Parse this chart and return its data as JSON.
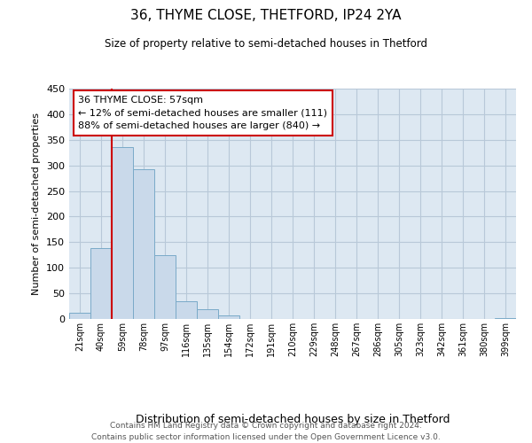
{
  "title": "36, THYME CLOSE, THETFORD, IP24 2YA",
  "subtitle": "Size of property relative to semi-detached houses in Thetford",
  "xlabel": "Distribution of semi-detached houses by size in Thetford",
  "ylabel": "Number of semi-detached properties",
  "bar_color": "#c9d9ea",
  "bar_edge_color": "#7aaac8",
  "background_color": "#ffffff",
  "plot_bg_color": "#dde8f2",
  "grid_color": "#b8c8d8",
  "bin_labels": [
    "21sqm",
    "40sqm",
    "59sqm",
    "78sqm",
    "97sqm",
    "116sqm",
    "135sqm",
    "154sqm",
    "172sqm",
    "191sqm",
    "210sqm",
    "229sqm",
    "248sqm",
    "267sqm",
    "286sqm",
    "305sqm",
    "323sqm",
    "342sqm",
    "361sqm",
    "380sqm",
    "399sqm"
  ],
  "bar_values": [
    12,
    139,
    336,
    292,
    124,
    35,
    19,
    7,
    0,
    0,
    0,
    0,
    0,
    0,
    0,
    0,
    0,
    0,
    0,
    0,
    2
  ],
  "ylim": [
    0,
    450
  ],
  "yticks": [
    0,
    50,
    100,
    150,
    200,
    250,
    300,
    350,
    400,
    450
  ],
  "vline_x": 1.5,
  "vline_color": "#cc0000",
  "ann_line1": "36 THYME CLOSE: 57sqm",
  "ann_line2": "← 12% of semi-detached houses are smaller (111)",
  "ann_line3": "88% of semi-detached houses are larger (840) →",
  "footer_line1": "Contains HM Land Registry data © Crown copyright and database right 2024.",
  "footer_line2": "Contains public sector information licensed under the Open Government Licence v3.0."
}
